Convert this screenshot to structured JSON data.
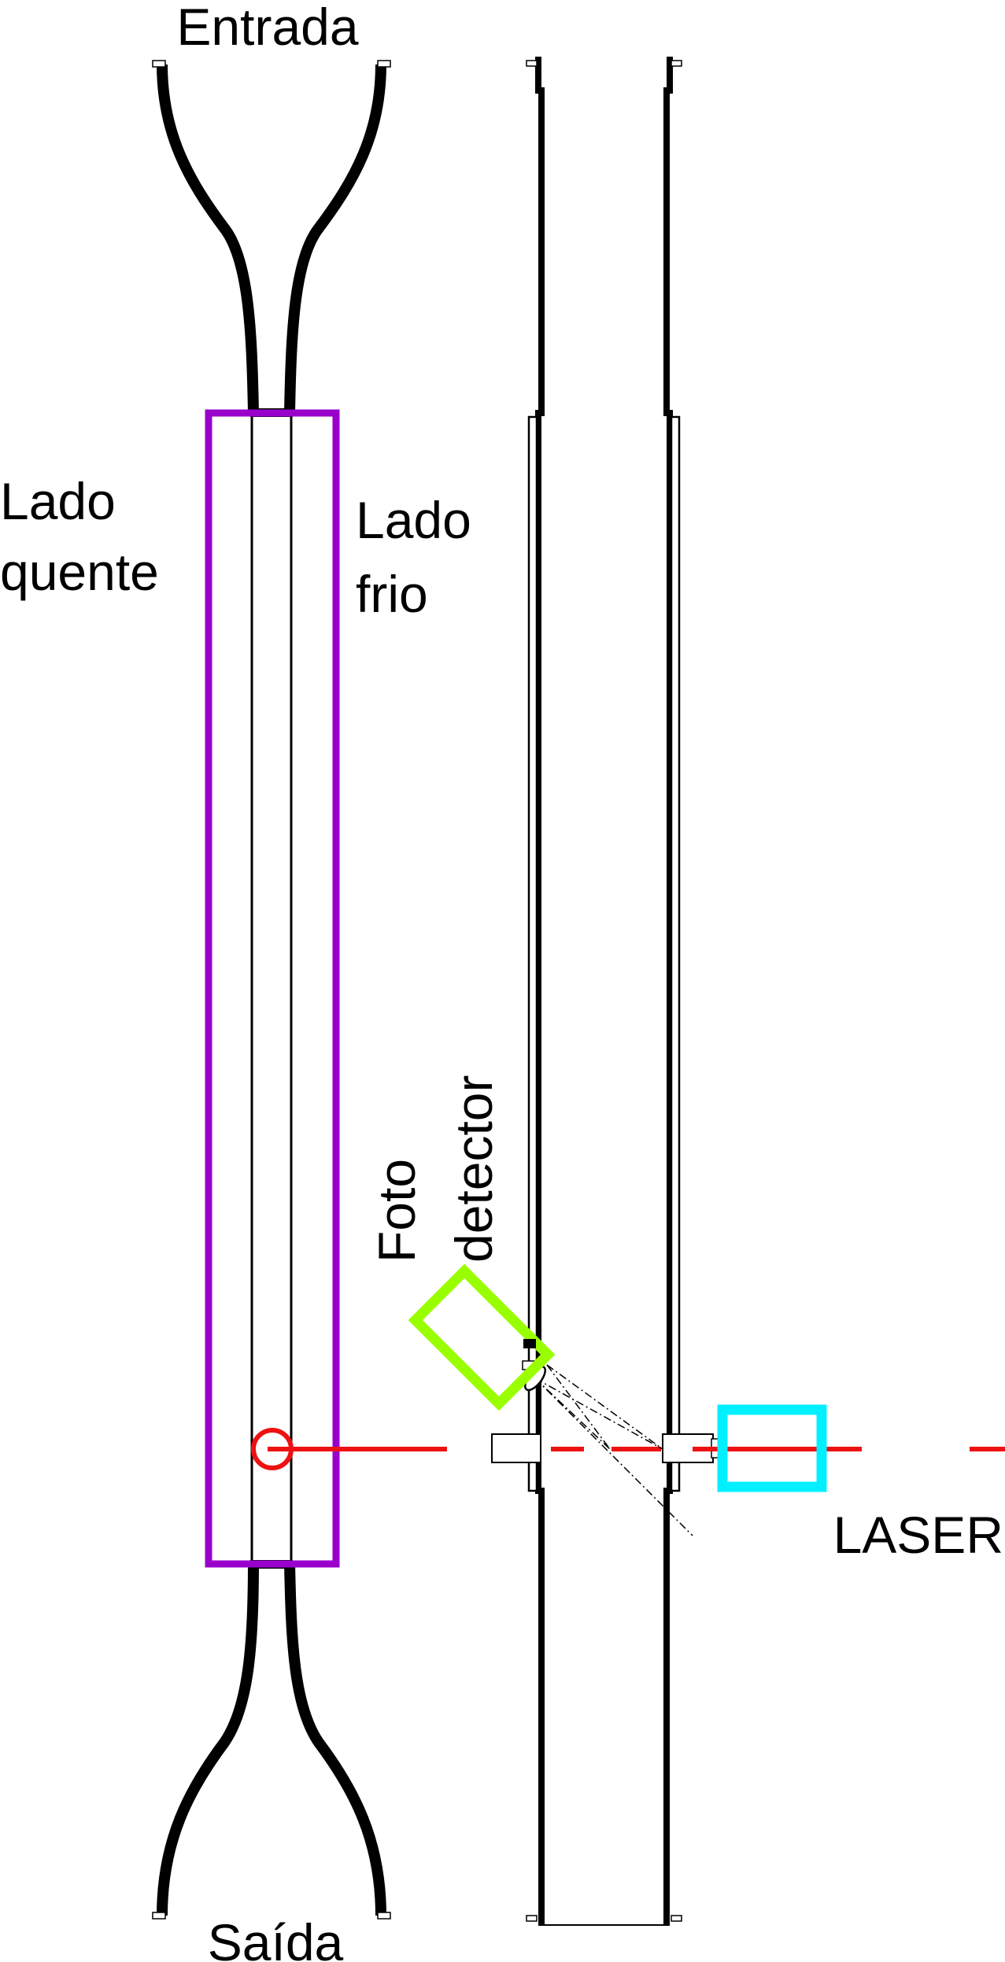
{
  "labels": {
    "entrada": "Entrada",
    "saida": "Saída",
    "lado_quente_1": "Lado",
    "lado_quente_2": "quente",
    "lado_frio_1": "Lado",
    "lado_frio_2": "frio",
    "foto_1": "Foto",
    "foto_2": "detector",
    "laser": "LASER"
  },
  "colors": {
    "tubing": "#000000",
    "heater_frame": "#9900cc",
    "laser_beam": "#ee1111",
    "photodetector": "#99ff00",
    "laser_body": "#00f0ff",
    "outline": "#000000"
  },
  "icons": {
    "photodetector": "photodetector-icon",
    "laser": "laser-icon",
    "measuring_point": "measuring-point-icon"
  }
}
